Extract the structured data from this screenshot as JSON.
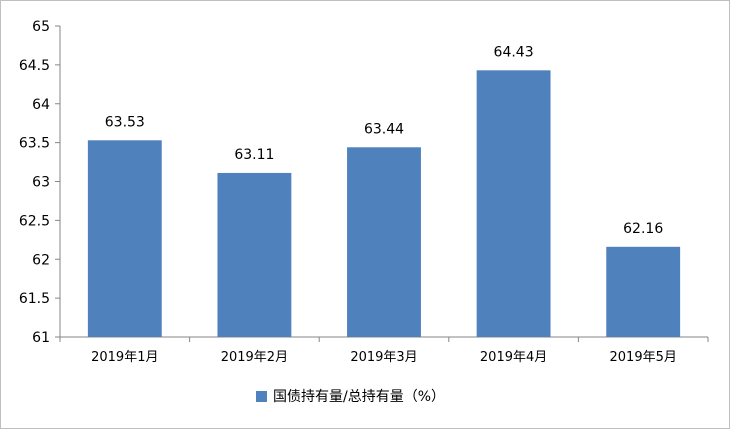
{
  "chart_data": {
    "type": "bar",
    "categories": [
      "2019年1月",
      "2019年2月",
      "2019年3月",
      "2019年4月",
      "2019年5月"
    ],
    "series": [
      {
        "name": "国债持有量/总持有量（%）",
        "values": [
          63.53,
          63.11,
          63.44,
          64.43,
          62.16
        ],
        "color": "#4f81bd"
      }
    ],
    "ylim": [
      61,
      65
    ],
    "yticks": [
      "61",
      "61.5",
      "62",
      "62.5",
      "63",
      "63.5",
      "64",
      "64.5",
      "65"
    ],
    "data_labels": [
      "63.53",
      "63.11",
      "63.44",
      "64.43",
      "62.16"
    ],
    "grid": false,
    "legend_position": "bottom"
  }
}
